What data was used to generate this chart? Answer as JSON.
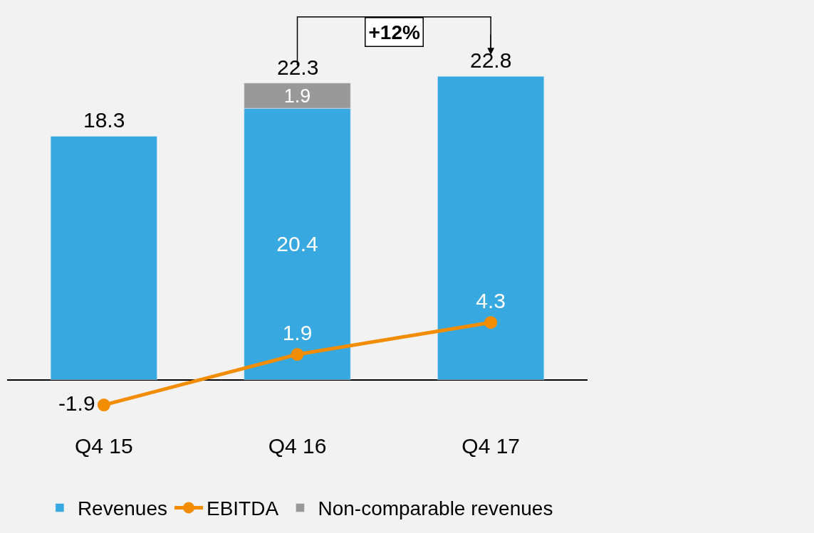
{
  "chart_data": {
    "type": "bar",
    "stacked": true,
    "categories": [
      "Q4 15",
      "Q4 16",
      "Q4 17"
    ],
    "series": [
      {
        "name": "Revenues",
        "color": "#38a9e0",
        "values": [
          18.3,
          20.4,
          22.8
        ],
        "value_labels": [
          null,
          "20.4",
          null
        ]
      },
      {
        "name": "EBITDA",
        "type": "line",
        "color": "#f28c00",
        "marker": "circle",
        "values": [
          -1.9,
          1.9,
          4.3
        ],
        "value_labels": [
          "-1.9",
          "1.9",
          "4.3"
        ]
      },
      {
        "name": "Non-comparable revenues",
        "color": "#999999",
        "values": [
          null,
          1.9,
          null
        ],
        "value_labels": [
          null,
          "1.9",
          null
        ]
      }
    ],
    "totals": [
      "18.3",
      "22.3",
      "22.8"
    ],
    "annotations": [
      "+12%"
    ],
    "legend": "bottom",
    "grid": false
  }
}
